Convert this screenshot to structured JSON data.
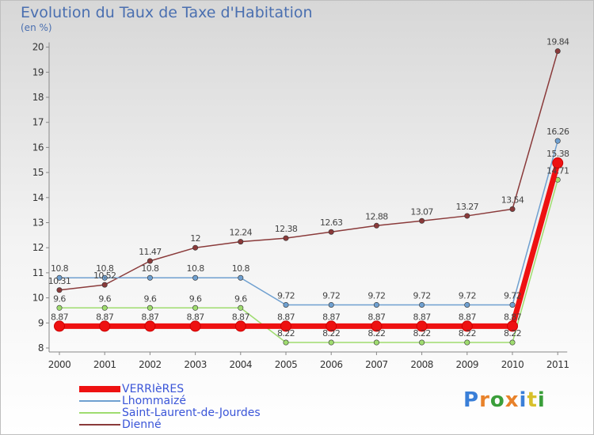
{
  "title": "Evolution du Taux de Taxe d'Habitation",
  "subtitle": "(en %)",
  "logo": {
    "text": "Proxiti",
    "colors": [
      "#3a7fd8",
      "#e8822a",
      "#3a9e3a",
      "#e8822a",
      "#3a7fd8",
      "#d8c02a",
      "#3a9e3a"
    ]
  },
  "chart_data": {
    "type": "line",
    "x": [
      "2000",
      "2001",
      "2002",
      "2003",
      "2004",
      "2005",
      "2006",
      "2007",
      "2008",
      "2009",
      "2010",
      "2011"
    ],
    "ylim": [
      8,
      20
    ],
    "yticks": [
      "8",
      "9",
      "10",
      "11",
      "12",
      "13",
      "14",
      "15",
      "16",
      "17",
      "18",
      "19",
      "20"
    ],
    "grid": false,
    "legend_position": "bottom-left",
    "series": [
      {
        "name": "VERRIèRES",
        "color": "#ee1111",
        "values": [
          8.87,
          8.87,
          8.87,
          8.87,
          8.87,
          8.87,
          8.87,
          8.87,
          8.87,
          8.87,
          8.87,
          15.38
        ],
        "labels": [
          "8.87",
          "8.87",
          "8.87",
          "8.87",
          "8.87",
          "8.87",
          "8.87",
          "8.87",
          "8.87",
          "8.87",
          "8.87",
          "15.38"
        ]
      },
      {
        "name": "Lhommaizé",
        "color": "#6fa0d0",
        "values": [
          10.8,
          10.8,
          10.8,
          10.8,
          10.8,
          9.72,
          9.72,
          9.72,
          9.72,
          9.72,
          9.72,
          16.26
        ],
        "labels": [
          "10.8",
          "10.8",
          "10.8",
          "10.8",
          "10.8",
          "9.72",
          "9.72",
          "9.72",
          "9.72",
          "9.72",
          "9.72",
          "16.26"
        ]
      },
      {
        "name": "Saint-Laurent-de-Jourdes",
        "color": "#9fdc6f",
        "values": [
          9.6,
          9.6,
          9.6,
          9.6,
          9.6,
          8.22,
          8.22,
          8.22,
          8.22,
          8.22,
          8.22,
          14.71
        ],
        "labels": [
          "9.6",
          "9.6",
          "9.6",
          "9.6",
          "9.6",
          "8.22",
          "8.22",
          "8.22",
          "8.22",
          "8.22",
          "8.22",
          "14.71"
        ]
      },
      {
        "name": "Dienné",
        "color": "#8a3a3a",
        "values": [
          10.31,
          10.52,
          11.47,
          12,
          12.24,
          12.38,
          12.63,
          12.88,
          13.07,
          13.27,
          13.54,
          19.84
        ],
        "labels": [
          "10.31",
          "10.52",
          "11.47",
          "12",
          "12.24",
          "12.38",
          "12.63",
          "12.88",
          "13.07",
          "13.27",
          "13.54",
          "19.84"
        ]
      }
    ]
  }
}
